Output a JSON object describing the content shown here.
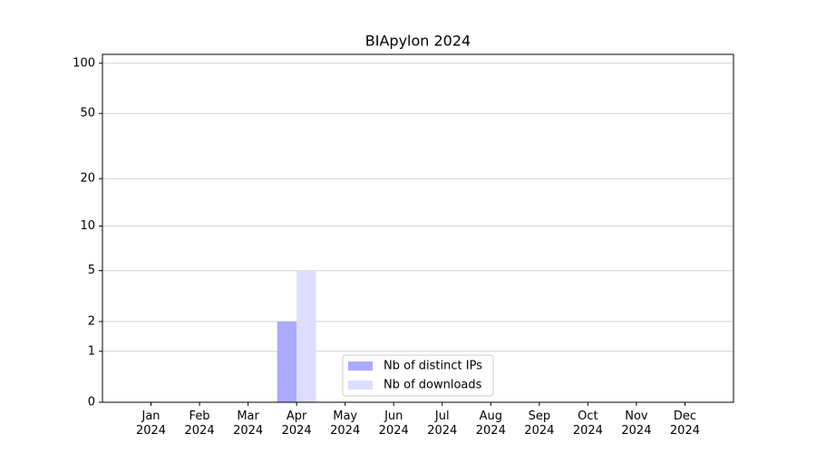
{
  "chart_data": {
    "type": "bar",
    "title": "BIApylon 2024",
    "scale": "log1p",
    "categories": [
      "Jan\n2024",
      "Feb\n2024",
      "Mar\n2024",
      "Apr\n2024",
      "May\n2024",
      "Jun\n2024",
      "Jul\n2024",
      "Aug\n2024",
      "Sep\n2024",
      "Oct\n2024",
      "Nov\n2024",
      "Dec\n2024"
    ],
    "series": [
      {
        "name": "Nb of distinct IPs",
        "color": "#aaaaff",
        "values": [
          0,
          0,
          0,
          2,
          0,
          0,
          0,
          0,
          0,
          0,
          0,
          0
        ]
      },
      {
        "name": "Nb of downloads",
        "color": "#ddddff",
        "values": [
          0,
          0,
          0,
          5,
          0,
          0,
          0,
          0,
          0,
          0,
          0,
          0
        ]
      }
    ],
    "ylim": [
      0,
      113
    ],
    "yticks": [
      0,
      1,
      2,
      5,
      10,
      20,
      50,
      100
    ],
    "grid": true,
    "legend": "lower center"
  }
}
